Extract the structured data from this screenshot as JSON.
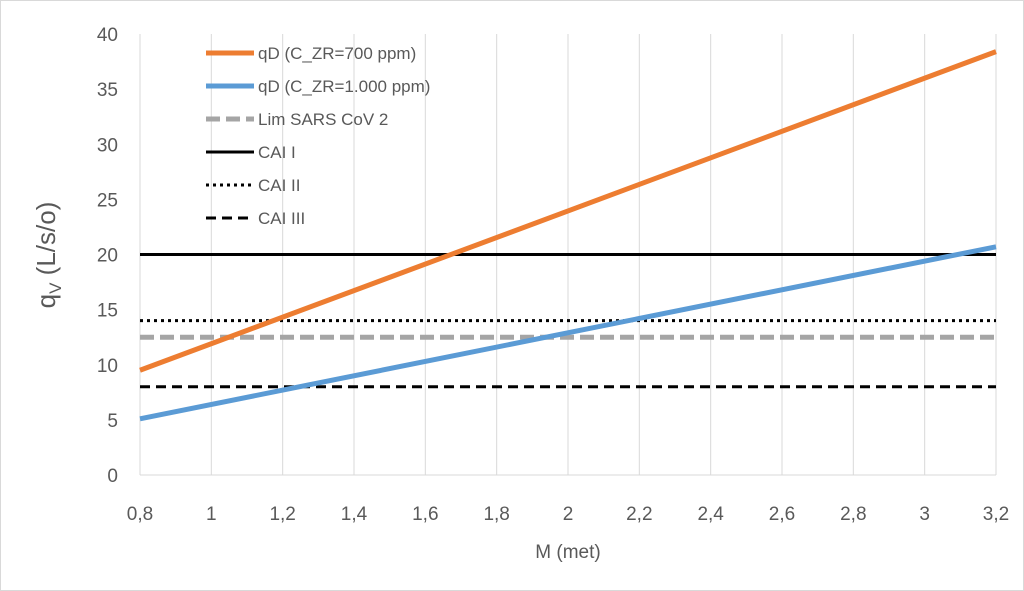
{
  "chart_data": {
    "type": "line",
    "xlabel": "M (met)",
    "ylabel_main": "q",
    "ylabel_sub": "V",
    "ylabel_rest": " (L/s/o)",
    "xlim": [
      0.8,
      3.2
    ],
    "ylim": [
      0,
      40
    ],
    "x_ticks": [
      "0,8",
      "1",
      "1,2",
      "1,4",
      "1,6",
      "1,8",
      "2",
      "2,2",
      "2,4",
      "2,6",
      "2,8",
      "3",
      "3,2"
    ],
    "y_ticks": [
      "0",
      "5",
      "10",
      "15",
      "20",
      "25",
      "30",
      "35",
      "40"
    ],
    "grid": "vertical",
    "legend_position": "top-left",
    "series": [
      {
        "name": "qD (C_ZR=700 ppm)",
        "color": "#ED7D31",
        "style": "solid",
        "x": [
          0.8,
          3.2
        ],
        "y": [
          9.5,
          38.4
        ]
      },
      {
        "name": "qD (C_ZR=1.000 ppm)",
        "color": "#5B9BD5",
        "style": "solid",
        "x": [
          0.8,
          3.2
        ],
        "y": [
          5.1,
          20.7
        ]
      },
      {
        "name": "Lim SARS CoV 2",
        "color": "#A5A5A5",
        "style": "dashed",
        "x": [
          0.8,
          3.2
        ],
        "y": [
          12.5,
          12.5
        ]
      },
      {
        "name": "CAI I",
        "color": "#000000",
        "style": "solid",
        "x": [
          0.8,
          3.2
        ],
        "y": [
          20,
          20
        ]
      },
      {
        "name": "CAI II",
        "color": "#000000",
        "style": "dotted",
        "x": [
          0.8,
          3.2
        ],
        "y": [
          14,
          14
        ]
      },
      {
        "name": "CAI III",
        "color": "#000000",
        "style": "dashed",
        "x": [
          0.8,
          3.2
        ],
        "y": [
          8,
          8
        ]
      }
    ]
  }
}
